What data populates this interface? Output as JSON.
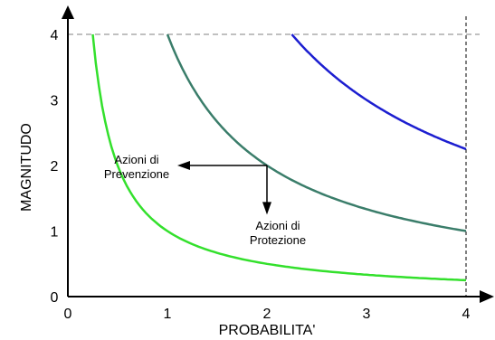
{
  "chart_data": {
    "type": "line",
    "xlabel": "PROBABILITA'",
    "ylabel": "MAGNITUDO",
    "xlim": [
      0,
      4
    ],
    "ylim": [
      0,
      4
    ],
    "xticks": [
      "0",
      "1",
      "2",
      "3",
      "4"
    ],
    "yticks": [
      "0",
      "1",
      "2",
      "3",
      "4"
    ],
    "grid": false,
    "series": [
      {
        "k": 1,
        "color": "#33e02c",
        "x": [
          0.25,
          0.3,
          0.4,
          0.5,
          0.75,
          1,
          1.5,
          2,
          2.5,
          3,
          3.5,
          4
        ],
        "values": [
          4,
          3.33,
          2.5,
          2,
          1.33,
          1,
          0.67,
          0.5,
          0.4,
          0.33,
          0.29,
          0.25
        ]
      },
      {
        "k": 4,
        "color": "#3a7d6a",
        "x": [
          1,
          1.25,
          1.5,
          1.75,
          2,
          2.5,
          3,
          3.5,
          4
        ],
        "values": [
          4,
          3.2,
          2.67,
          2.29,
          2,
          1.6,
          1.33,
          1.14,
          1
        ]
      },
      {
        "k": 9,
        "color": "#1c1ed0",
        "x": [
          2.25,
          2.5,
          3,
          3.5,
          4
        ],
        "values": [
          4,
          3.6,
          3,
          2.57,
          2.25
        ]
      }
    ],
    "reference_lines": {
      "y_max": 4,
      "x_max": 4,
      "style": "dashed"
    },
    "annotations": [
      {
        "lines": [
          "Azioni di",
          "Prevenzione"
        ],
        "arrow": "left",
        "from": [
          2,
          2
        ],
        "to": [
          1.1,
          2
        ]
      },
      {
        "lines": [
          "Azioni di",
          "Protezione"
        ],
        "arrow": "down",
        "from": [
          2,
          2
        ],
        "to": [
          2,
          1.25
        ]
      }
    ],
    "colors": {
      "axis": "#000000",
      "dashed": "#808080",
      "annotation_arrow": "#000000"
    }
  }
}
